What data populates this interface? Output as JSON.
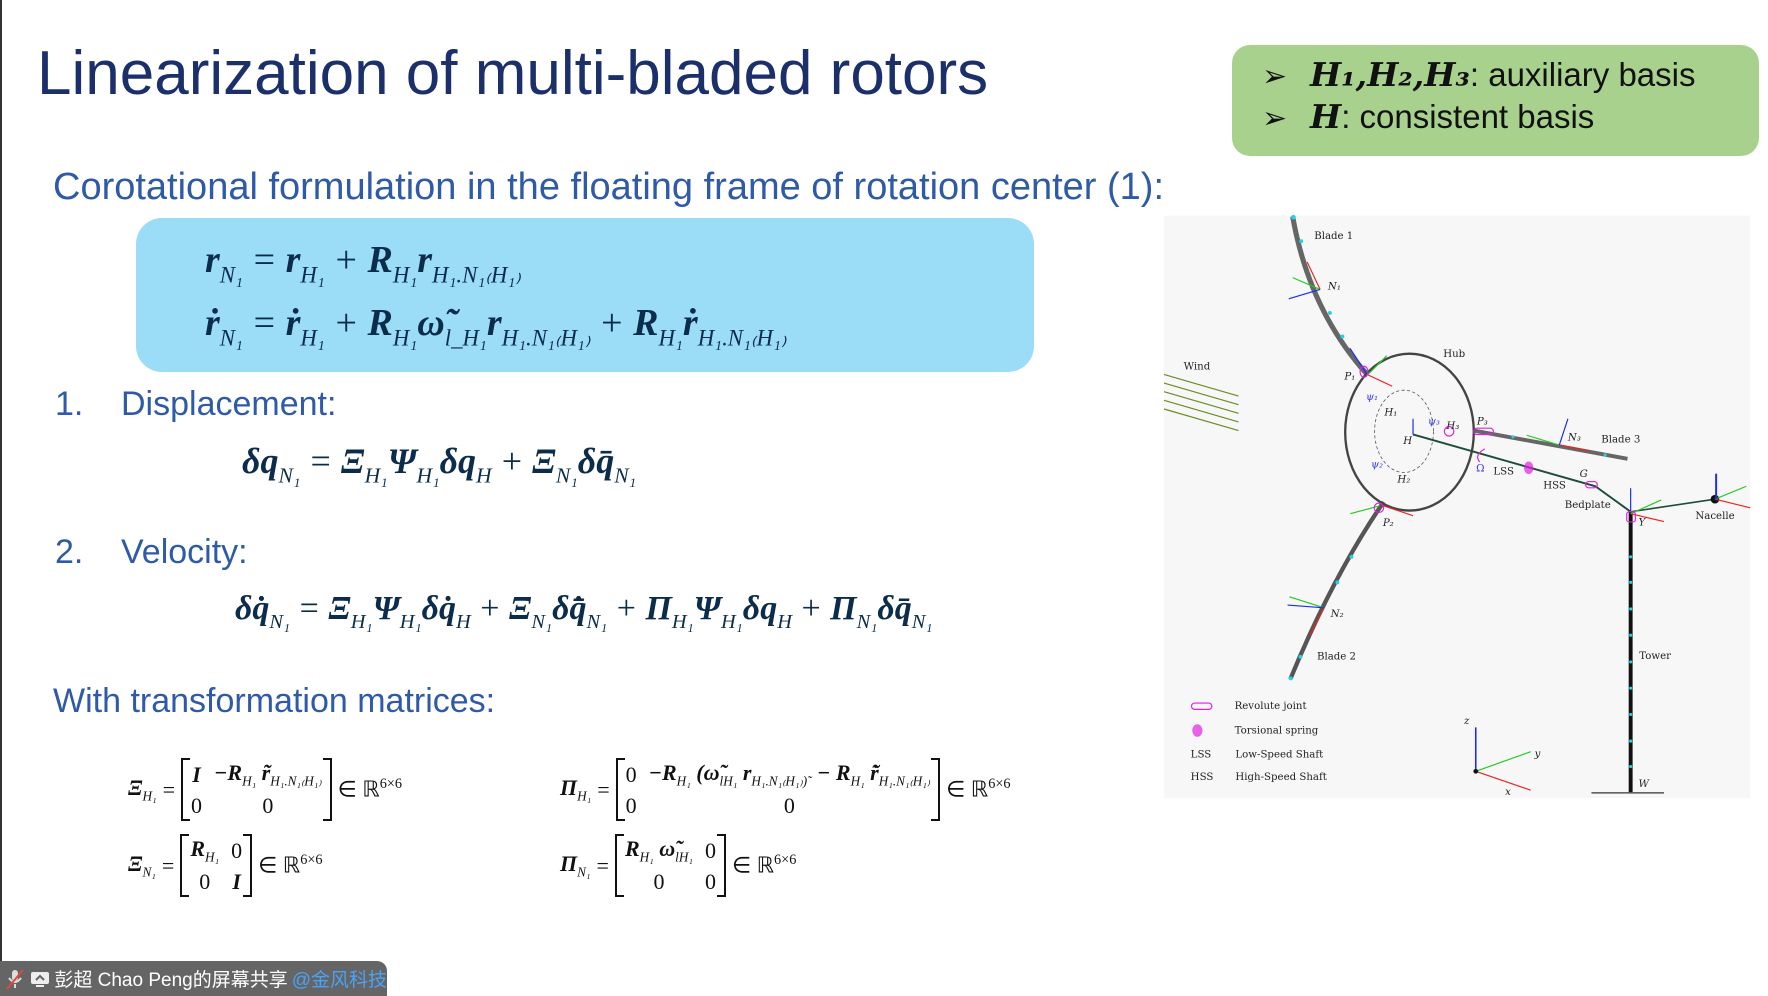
{
  "slide": {
    "title": "Linearization of multi-bladed rotors",
    "note": [
      {
        "bullet": "➢",
        "math": "H₁,H₂,H₃",
        "text": ": auxiliary basis"
      },
      {
        "bullet": "➢",
        "math": "H",
        "text": ": consistent basis"
      }
    ],
    "subtitle": "Corotational formulation in the floating frame of rotation center (1):",
    "sections": [
      {
        "num": "1.",
        "label": "Displacement:"
      },
      {
        "num": "2.",
        "label": "Velocity:"
      }
    ],
    "matrices_heading": "With transformation matrices:",
    "equations": {
      "position": [
        {
          "b": "r",
          "sub": "N₁"
        },
        {
          "op": "="
        },
        {
          "b": "r",
          "sub": "H₁"
        },
        {
          "op": "+"
        },
        {
          "b": "R",
          "sub": "H₁"
        },
        {
          "b": "r",
          "sub": "H₁.N₁₍H₁₎"
        }
      ],
      "velocity_kin": [
        {
          "b": "ṙ",
          "sub": "N₁"
        },
        {
          "op": "="
        },
        {
          "b": "ṙ",
          "sub": "H₁"
        },
        {
          "op": "+"
        },
        {
          "b": "R",
          "sub": "H₁"
        },
        {
          "b": "ω̃",
          "sub": "l_H₁"
        },
        {
          "b": "r",
          "sub": "H₁.N₁₍H₁₎"
        },
        {
          "op": "+"
        },
        {
          "b": "R",
          "sub": "H₁"
        },
        {
          "b": "ṙ",
          "sub": "H₁.N₁₍H₁₎"
        }
      ],
      "displacement": [
        {
          "b": "δq",
          "sub": "N₁"
        },
        {
          "op": "="
        },
        {
          "b": "Ξ",
          "sub": "H₁"
        },
        {
          "b": "Ψ",
          "sub": "H₁"
        },
        {
          "b": "δq",
          "sub": "H"
        },
        {
          "op": "+"
        },
        {
          "b": "Ξ",
          "sub": "N₁"
        },
        {
          "b": "δq̄",
          "sub": "N₁"
        }
      ],
      "velocity": [
        {
          "b": "δq̇",
          "sub": "N₁"
        },
        {
          "op": "="
        },
        {
          "b": "Ξ",
          "sub": "H₁"
        },
        {
          "b": "Ψ",
          "sub": "H₁"
        },
        {
          "b": "δq̇",
          "sub": "H"
        },
        {
          "op": "+"
        },
        {
          "b": "Ξ",
          "sub": "N₁"
        },
        {
          "b": "δq̄̇",
          "sub": "N₁"
        },
        {
          "op": "+"
        },
        {
          "b": "Π",
          "sub": "H₁"
        },
        {
          "b": "Ψ",
          "sub": "H₁"
        },
        {
          "b": "δq",
          "sub": "H"
        },
        {
          "op": "+"
        },
        {
          "b": "Π",
          "sub": "N₁"
        },
        {
          "b": "δq̄",
          "sub": "N₁"
        }
      ]
    },
    "matrices": [
      {
        "lhs": "Ξ",
        "sub": "H₁",
        "eq": "=",
        "rows": [
          [
            "I",
            "−R_H₁ r̃_H₁.N₁₍H₁₎"
          ],
          [
            "0",
            "0"
          ]
        ],
        "set": "∈ ℝ",
        "dim": "6×6"
      },
      {
        "lhs": "Π",
        "sub": "H₁",
        "eq": "=",
        "rows": [
          [
            "0",
            "−R_H₁ (ω̃_lH₁ r_H₁.N₁₍H₁₎)˜ − R_H₁ r̃̇_H₁.N₁₍H₁₎"
          ],
          [
            "0",
            "0"
          ]
        ],
        "set": "∈ ℝ",
        "dim": "6×6"
      },
      {
        "lhs": "Ξ",
        "sub": "N₁",
        "eq": "=",
        "rows": [
          [
            "R_H₁",
            "0"
          ],
          [
            "0",
            "I"
          ]
        ],
        "set": "∈ ℝ",
        "dim": "6×6"
      },
      {
        "lhs": "Π",
        "sub": "N₁",
        "eq": "=",
        "rows": [
          [
            "R_H₁ ω̃_lH₁",
            "0"
          ],
          [
            "0",
            "0"
          ]
        ],
        "set": "∈ ℝ",
        "dim": "6×6"
      }
    ]
  },
  "diagram": {
    "labels": {
      "blade1": "Blade 1",
      "blade2": "Blade 2",
      "blade3": "Blade 3",
      "n1": "N₁",
      "n2": "N₂",
      "n3": "N₃",
      "wind": "Wind",
      "hub": "Hub",
      "p1": "P₁",
      "p2": "P₂",
      "p3": "P₃",
      "h": "H",
      "h1": "H₁",
      "h2": "H₂",
      "h3": "H₃",
      "psi1": "ψ₁",
      "psi2": "ψ₂",
      "psi3": "ψ₃",
      "omega": "Ω",
      "lss": "LSS",
      "hss": "HSS",
      "g": "G",
      "bedplate": "Bedplate",
      "y_joint": "Y",
      "nacelle": "Nacelle",
      "tower": "Tower",
      "w": "W",
      "axis_x": "x",
      "axis_y": "y",
      "axis_z": "z"
    },
    "legend": [
      {
        "key": "",
        "label": "Revolute joint"
      },
      {
        "key": "",
        "label": "Torsional spring"
      },
      {
        "key": "LSS",
        "label": "Low-Speed Shaft"
      },
      {
        "key": "HSS",
        "label": "High-Speed Shaft"
      }
    ],
    "colors": {
      "blade": "#666666",
      "shaft": "#1f4d3a",
      "joint": "#e020e0",
      "node": "#22d3e6",
      "wind": "#6b8e23",
      "x_axis": "#ee2222",
      "y_axis": "#22cc22",
      "z_axis": "#1a2cee"
    }
  },
  "footer": {
    "share_text": "彭超 Chao Peng的屏幕共享",
    "handle": "@金风科技",
    "mic_icon": "mic-muted-icon",
    "screen_icon": "screen-share-icon"
  }
}
